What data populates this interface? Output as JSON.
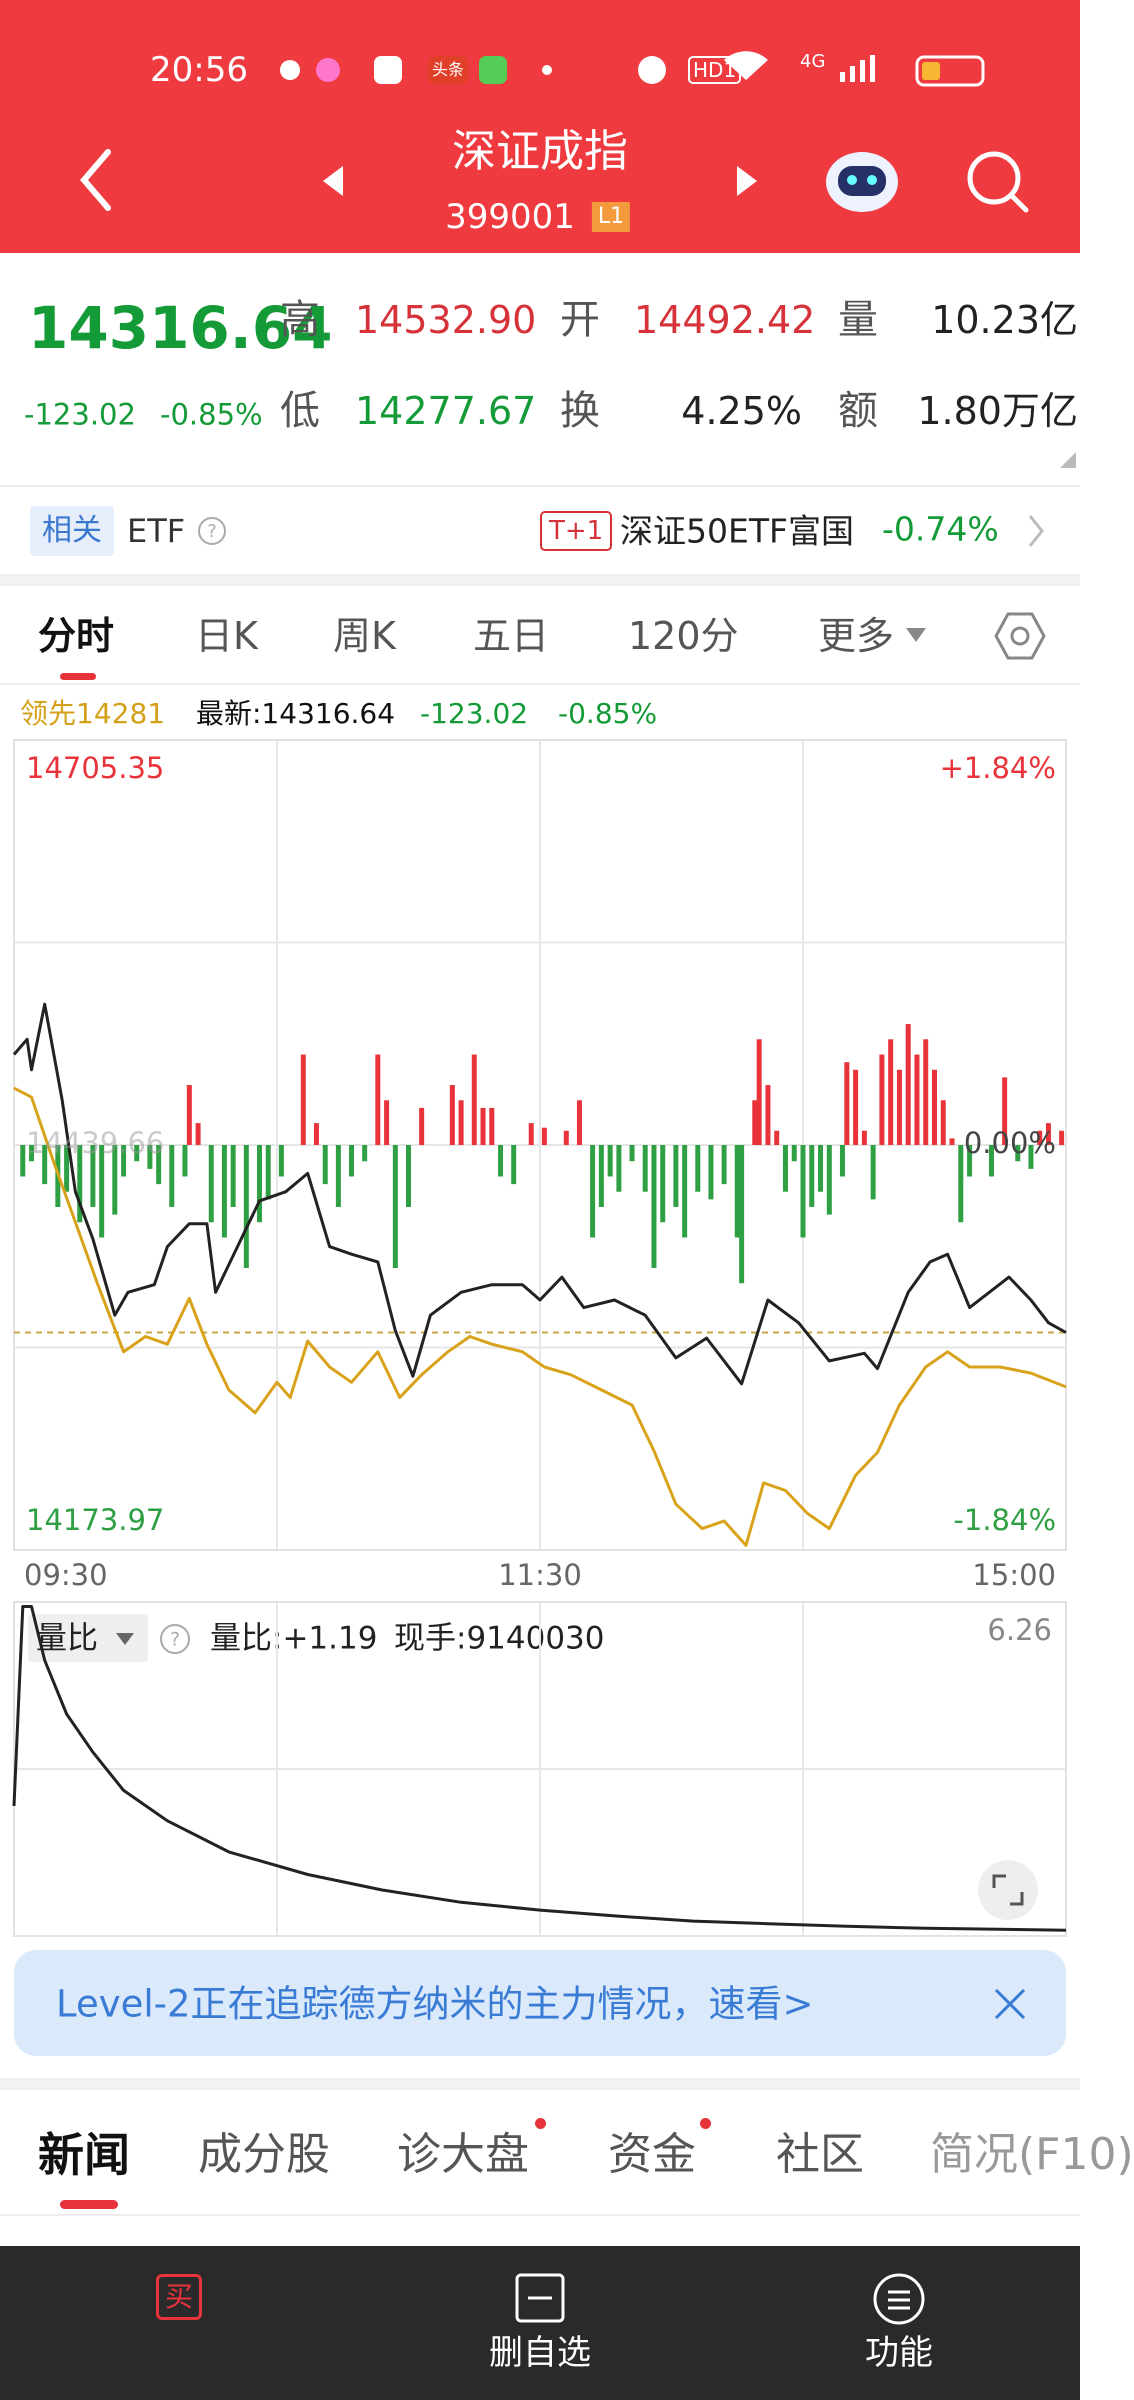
{
  "status_bar": {
    "time": "20:56",
    "badge": "头条",
    "hd": "HD1",
    "network": "4G"
  },
  "header": {
    "title": "深证成指",
    "code": "399001",
    "level": "L1"
  },
  "quote": {
    "price": "14316.64",
    "change": "-123.02",
    "change_pct": "-0.85%",
    "fields": [
      {
        "label": "高",
        "value": "14532.90"
      },
      {
        "label": "开",
        "value": "14492.42"
      },
      {
        "label": "量",
        "value": "10.23亿"
      },
      {
        "label": "低",
        "value": "14277.67"
      },
      {
        "label": "换",
        "value": "4.25%"
      },
      {
        "label": "额",
        "value": "1.80万亿"
      }
    ]
  },
  "etf": {
    "tag": "相关",
    "label": "ETF",
    "badge": "T+1",
    "name": "深证50ETF富国",
    "change": "-0.74%"
  },
  "chart_tabs": [
    "分时",
    "日K",
    "周K",
    "五日",
    "120分",
    "更多"
  ],
  "chart_info": {
    "leading": "领先14281",
    "latest": "最新:14316.64",
    "change": "-123.02",
    "change_pct": "-0.85%"
  },
  "chart_data": [
    {
      "type": "line",
      "xlim": [
        0,
        240
      ],
      "xticks": [
        {
          "value": 0,
          "label": "09:30"
        },
        {
          "value": 120,
          "label": "11:30"
        },
        {
          "value": 240,
          "label": "15:00"
        }
      ],
      "xgrid": [
        60,
        120,
        180
      ],
      "ylim": [
        14173.97,
        14705.35
      ],
      "yticks": [
        14173.97,
        14439.66,
        14705.35
      ],
      "ygrid": [
        14306.82,
        14439.66,
        14572.51
      ],
      "y2lim": [
        -1.84,
        1.84
      ],
      "y2ticks": [
        {
          "value": -1.84,
          "label": "-1.84%"
        },
        {
          "value": 0,
          "label": "0.00%"
        },
        {
          "value": 1.84,
          "label": "+1.84%"
        }
      ],
      "last_price_line": 14316.64,
      "up_color": "#e8333a",
      "down_color": "#2ea043",
      "series": [
        {
          "type": "bar",
          "x": [
            2,
            4,
            7,
            10,
            12,
            15,
            18,
            20,
            23,
            25,
            28,
            31,
            33,
            36,
            39,
            40,
            42,
            45,
            48,
            50,
            53,
            56,
            58,
            61,
            66,
            69,
            71,
            74,
            77,
            80,
            83,
            85,
            87,
            90,
            93,
            100,
            102,
            105,
            107,
            109,
            111,
            114,
            118,
            121,
            126,
            129,
            132,
            134,
            136,
            138,
            141,
            144,
            146,
            148,
            151,
            153,
            156,
            159,
            162,
            165,
            166,
            169,
            170,
            172,
            174,
            176,
            178,
            180,
            182,
            184,
            186,
            189,
            190,
            192,
            194,
            196,
            198,
            200,
            202,
            204,
            206,
            208,
            210,
            212,
            214,
            216,
            218,
            223,
            226,
            229,
            232,
            234,
            236,
            239
          ],
          "values": [
            14419,
            14429,
            14414,
            14399,
            14409,
            14389,
            14399,
            14379,
            14394,
            14419,
            14429,
            14424,
            14414,
            14399,
            14419,
            14479,
            14454,
            14389,
            14379,
            14399,
            14359,
            14389,
            14404,
            14419,
            14499,
            14454,
            14414,
            14399,
            14419,
            14429,
            14499,
            14469,
            14359,
            14399,
            14464,
            14479,
            14469,
            14499,
            14464,
            14464,
            14419,
            14414,
            14454,
            14451,
            14449,
            14469,
            14379,
            14399,
            14419,
            14409,
            14429,
            14409,
            14359,
            14389,
            14399,
            14379,
            14409,
            14404,
            14414,
            14379,
            14349,
            14469,
            14509,
            14479,
            14449,
            14409,
            14429,
            14379,
            14399,
            14409,
            14394,
            14419,
            14494,
            14489,
            14449,
            14404,
            14499,
            14509,
            14489,
            14519,
            14499,
            14509,
            14489,
            14469,
            14444,
            14389,
            14419,
            14419,
            14484,
            14429,
            14424,
            14449,
            14454,
            14449
          ]
        },
        {
          "color": "#d9a21b",
          "x": [
            0,
            4,
            9,
            14,
            19,
            25,
            30,
            35,
            40,
            44,
            49,
            55,
            60,
            63,
            67,
            72,
            77,
            83,
            88,
            93,
            99,
            104,
            109,
            116,
            121,
            127,
            134,
            141,
            146,
            151,
            157,
            162,
            167,
            171,
            176,
            181,
            186,
            192,
            197,
            202,
            208,
            213,
            218,
            225,
            232,
            240
          ],
          "values": [
            14477,
            14471,
            14429,
            14389,
            14349,
            14304,
            14314,
            14309,
            14339,
            14309,
            14279,
            14264,
            14284,
            14274,
            14311,
            14294,
            14284,
            14304,
            14274,
            14289,
            14304,
            14314,
            14309,
            14304,
            14294,
            14289,
            14279,
            14269,
            14239,
            14204,
            14188,
            14193,
            14177,
            14218,
            14213,
            14198,
            14188,
            14223,
            14238,
            14269,
            14294,
            14304,
            14294,
            14294,
            14290,
            14281
          ]
        },
        {
          "color": "#222222",
          "x": [
            0,
            3,
            4,
            7,
            11,
            14,
            18,
            23,
            26,
            32,
            35,
            40,
            44,
            46,
            51,
            56,
            62,
            67,
            72,
            77,
            83,
            87,
            91,
            95,
            102,
            109,
            116,
            120,
            125,
            130,
            137,
            144,
            151,
            158,
            166,
            172,
            179,
            186,
            194,
            197,
            204,
            209,
            213,
            218,
            227,
            232,
            236,
            240
          ],
          "values": [
            14499,
            14509,
            14489,
            14532,
            14469,
            14409,
            14378,
            14328,
            14343,
            14348,
            14373,
            14388,
            14388,
            14343,
            14373,
            14403,
            14409,
            14421,
            14373,
            14368,
            14363,
            14318,
            14288,
            14328,
            14343,
            14348,
            14348,
            14338,
            14353,
            14333,
            14338,
            14328,
            14300,
            14313,
            14283,
            14338,
            14323,
            14298,
            14303,
            14293,
            14343,
            14363,
            14368,
            14333,
            14353,
            14338,
            14323,
            14316.64
          ]
        }
      ]
    },
    {
      "type": "line",
      "label": "量比",
      "info": "量比:+1.19",
      "hand": "现手:9140030",
      "xlim": [
        0,
        240
      ],
      "xgrid": [
        60,
        120,
        180
      ],
      "ylim": [
        1.1,
        6.26
      ],
      "yticks": [
        6.26
      ],
      "ygrid": [
        3.68
      ],
      "series": [
        {
          "color": "#222222",
          "x": [
            0,
            2,
            4,
            7,
            12,
            18,
            25,
            35,
            49,
            67,
            84,
            102,
            120,
            137,
            155,
            172,
            190,
            208,
            240
          ],
          "values": [
            3.11,
            6.19,
            6.19,
            5.36,
            4.53,
            3.94,
            3.35,
            2.88,
            2.4,
            2.05,
            1.81,
            1.62,
            1.5,
            1.41,
            1.33,
            1.29,
            1.25,
            1.22,
            1.19
          ]
        }
      ]
    }
  ],
  "banner": {
    "text": "Level-2正在追踪德方纳米的主力情况，速看>"
  },
  "news_tabs": [
    "新闻",
    "成分股",
    "诊大盘",
    "资金",
    "社区",
    "简况(F10)"
  ],
  "bottom_bar": {
    "buy_icon": "买",
    "watch": "删自选",
    "menu": "功能"
  }
}
